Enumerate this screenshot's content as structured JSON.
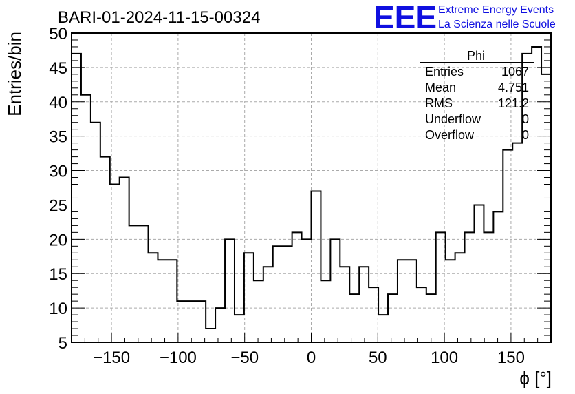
{
  "chart_data": {
    "type": "histogram",
    "title": "BARI-01-2024-11-15-00324",
    "xlabel": "ϕ [°]",
    "ylabel": "Entries/bin",
    "xlim": [
      -180,
      180
    ],
    "ylim": [
      5,
      50
    ],
    "bin_width": 7.2,
    "x_ticks": [
      -150,
      -100,
      -50,
      0,
      50,
      100,
      150
    ],
    "x_tick_labels": [
      "−150",
      "−100",
      "−50",
      "0",
      "50",
      "100",
      "150"
    ],
    "y_ticks": [
      5,
      10,
      15,
      20,
      25,
      30,
      35,
      40,
      45,
      50
    ],
    "y_tick_labels": [
      "5",
      "10",
      "15",
      "20",
      "25",
      "30",
      "35",
      "40",
      "45",
      "50"
    ],
    "grid": true,
    "values": [
      47,
      41,
      37,
      32,
      28,
      29,
      22,
      22,
      18,
      17,
      17,
      11,
      11,
      11,
      7,
      10,
      20,
      9,
      18,
      14,
      16,
      19,
      19,
      21,
      20,
      27,
      14,
      20,
      16,
      12,
      16,
      13,
      9,
      12,
      17,
      17,
      13,
      12,
      21,
      17,
      18,
      21,
      25,
      21,
      24,
      33,
      34,
      47,
      48,
      44
    ]
  },
  "stats": {
    "name": "Phi",
    "rows": [
      {
        "label": "Entries",
        "value": "1067"
      },
      {
        "label": "Mean",
        "value": "4.751"
      },
      {
        "label": "RMS",
        "value": "121.2"
      },
      {
        "label": "Underflow",
        "value": "0"
      },
      {
        "label": "Overflow",
        "value": "0"
      }
    ]
  },
  "logo": {
    "mark": "EEE",
    "line1": "Extreme Energy Events",
    "line2": "La Scienza nelle Scuole",
    "color": "#1010e0"
  }
}
